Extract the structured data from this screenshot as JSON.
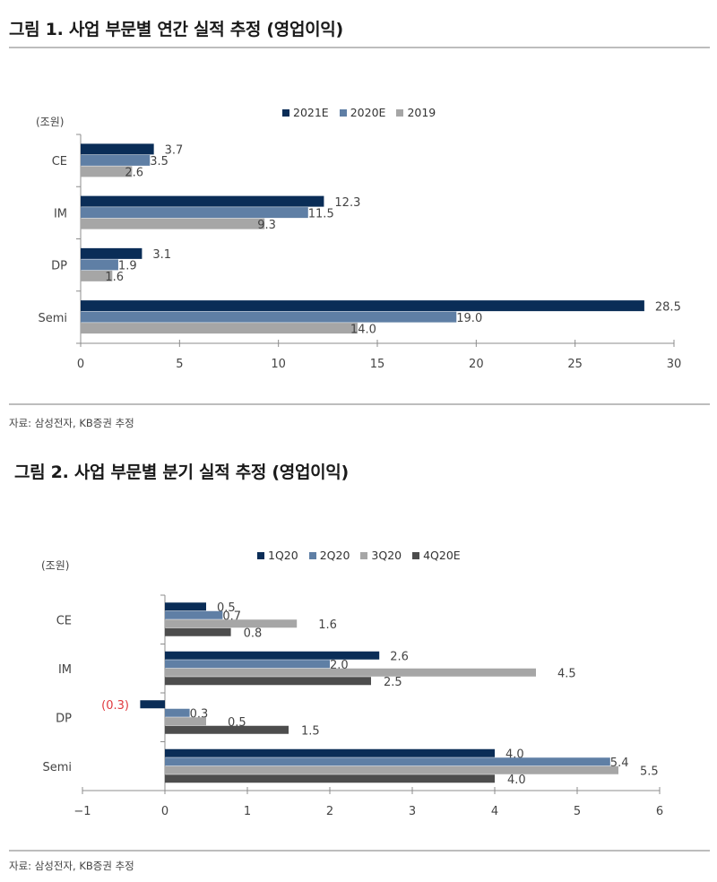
{
  "figure1": {
    "title": "그림 1. 사업 부문별 연간 실적 추정 (영업이익)",
    "unit": "(조원)",
    "source": "자료: 삼성전자, KB증권 추정",
    "legend": [
      {
        "label": "2021E",
        "color": "#0a2d57"
      },
      {
        "label": "2020E",
        "color": "#5f7fa5"
      },
      {
        "label": "2019",
        "color": "#a6a6a6"
      }
    ]
  },
  "figure2": {
    "title": "그림 2. 사업 부문별 분기 실적 추정 (영업이익)",
    "unit": "(조원)",
    "source": "자료: 삼성전자, KB증권 추정",
    "legend": [
      {
        "label": "1Q20",
        "color": "#0a2d57"
      },
      {
        "label": "2Q20",
        "color": "#5f7fa5"
      },
      {
        "label": "3Q20",
        "color": "#a6a6a6"
      },
      {
        "label": "4Q20E",
        "color": "#4d4d4d"
      }
    ],
    "negative_label_color": "#e0393e"
  },
  "chart_data": [
    {
      "type": "bar",
      "orientation": "horizontal",
      "title": "그림 1. 사업 부문별 연간 실적 추정 (영업이익)",
      "xlabel": "",
      "ylabel": "(조원)",
      "categories": [
        "CE",
        "IM",
        "DP",
        "Semi"
      ],
      "series": [
        {
          "name": "2021E",
          "color": "#0a2d57",
          "values": [
            3.7,
            12.3,
            3.1,
            28.5
          ]
        },
        {
          "name": "2020E",
          "color": "#5f7fa5",
          "values": [
            3.5,
            11.5,
            1.9,
            19.0
          ]
        },
        {
          "name": "2019",
          "color": "#a6a6a6",
          "values": [
            2.6,
            9.3,
            1.6,
            14.0
          ]
        }
      ],
      "xlim": [
        0,
        30
      ],
      "xticks": [
        0,
        5,
        10,
        15,
        20,
        25,
        30
      ],
      "grid": false,
      "legend_position": "top",
      "data_labels": true
    },
    {
      "type": "bar",
      "orientation": "horizontal",
      "title": "그림 2. 사업 부문별 분기 실적 추정 (영업이익)",
      "xlabel": "",
      "ylabel": "(조원)",
      "categories": [
        "CE",
        "IM",
        "DP",
        "Semi"
      ],
      "series": [
        {
          "name": "1Q20",
          "color": "#0a2d57",
          "values": [
            0.5,
            2.6,
            -0.3,
            4.0
          ]
        },
        {
          "name": "2Q20",
          "color": "#5f7fa5",
          "values": [
            0.7,
            2.0,
            0.3,
            5.4
          ]
        },
        {
          "name": "3Q20",
          "color": "#a6a6a6",
          "values": [
            1.6,
            4.5,
            0.5,
            5.5
          ]
        },
        {
          "name": "4Q20E",
          "color": "#4d4d4d",
          "values": [
            0.8,
            2.5,
            1.5,
            4.0
          ]
        }
      ],
      "xlim": [
        -1,
        6
      ],
      "xticks": [
        -1,
        0,
        1,
        2,
        3,
        4,
        5,
        6
      ],
      "grid": false,
      "legend_position": "top",
      "data_labels": true,
      "negative_format": "(0.3)"
    }
  ]
}
